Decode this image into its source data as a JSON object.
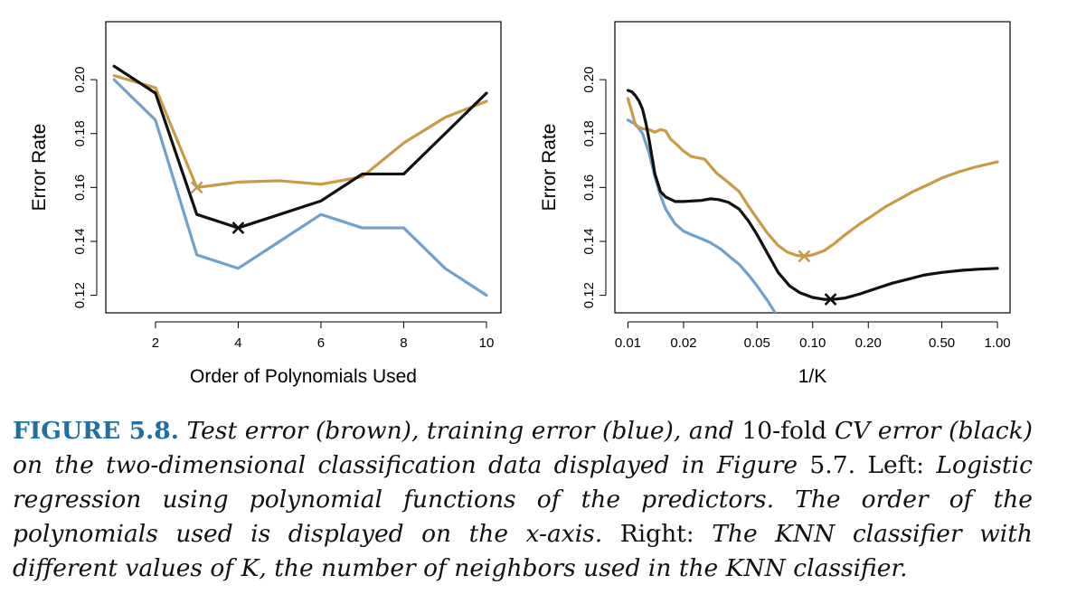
{
  "chart_data": [
    {
      "type": "line",
      "xlabel": "Order of Polynomials Used",
      "ylabel": "Error Rate",
      "xscale": "linear",
      "xlim": [
        0.8,
        10.35
      ],
      "ylim": [
        0.1135,
        0.2215
      ],
      "xticks": [
        2,
        4,
        6,
        8,
        10
      ],
      "xtick_labels": [
        "2",
        "4",
        "6",
        "8",
        "10"
      ],
      "yticks": [
        0.12,
        0.14,
        0.16,
        0.18,
        0.2
      ],
      "ytick_labels": [
        "0.12",
        "0.14",
        "0.16",
        "0.18",
        "0.20"
      ],
      "x": [
        1,
        2,
        3,
        4,
        5,
        6,
        7,
        8,
        9,
        10
      ],
      "series": [
        {
          "color": "#6fa1cb",
          "values": [
            0.2,
            0.185,
            0.135,
            0.13,
            0.14,
            0.15,
            0.145,
            0.145,
            0.13,
            0.12
          ]
        },
        {
          "color": "#c89b47",
          "values": [
            0.2015,
            0.197,
            0.16,
            0.162,
            0.1625,
            0.1612,
            0.164,
            0.1765,
            0.186,
            0.192
          ]
        },
        {
          "color": "#111111",
          "values": [
            0.205,
            0.195,
            0.15,
            0.145,
            0.15,
            0.155,
            0.165,
            0.165,
            0.18,
            0.195
          ]
        }
      ],
      "markers": [
        {
          "x": 3,
          "y": 0.16,
          "color": "#c89b47"
        },
        {
          "x": 4,
          "y": 0.145,
          "color": "#111111"
        }
      ]
    },
    {
      "type": "line",
      "xlabel": "1/K",
      "ylabel": "Error Rate",
      "xscale": "log",
      "xlim": [
        0.0085,
        1.17
      ],
      "ylim": [
        0.1135,
        0.2215
      ],
      "xticks": [
        0.01,
        0.02,
        0.05,
        0.1,
        0.2,
        0.5,
        1.0
      ],
      "xtick_labels": [
        "0.01",
        "0.02",
        "0.05",
        "0.10",
        "0.20",
        "0.50",
        "1.00"
      ],
      "yticks": [
        0.12,
        0.14,
        0.16,
        0.18,
        0.2
      ],
      "ytick_labels": [
        "0.12",
        "0.14",
        "0.16",
        "0.18",
        "0.20"
      ],
      "series": [
        {
          "color": "#6fa1cb",
          "x": [
            0.01,
            0.011,
            0.012,
            0.013,
            0.014,
            0.015,
            0.016,
            0.018,
            0.02,
            0.022,
            0.025,
            0.028,
            0.032,
            0.036,
            0.04,
            0.045,
            0.05,
            0.057,
            0.064,
            0.0715
          ],
          "values": [
            0.185,
            0.1835,
            0.18,
            0.173,
            0.164,
            0.157,
            0.152,
            0.1465,
            0.1438,
            0.1425,
            0.141,
            0.1395,
            0.137,
            0.134,
            0.1315,
            0.1275,
            0.1235,
            0.118,
            0.1125,
            0.1065
          ]
        },
        {
          "color": "#c89b47",
          "x": [
            0.01,
            0.0105,
            0.011,
            0.012,
            0.013,
            0.014,
            0.015,
            0.016,
            0.017,
            0.018,
            0.02,
            0.022,
            0.024,
            0.026,
            0.03,
            0.034,
            0.04,
            0.045,
            0.05,
            0.057,
            0.065,
            0.073,
            0.082,
            0.09,
            0.1,
            0.115,
            0.13,
            0.15,
            0.18,
            0.21,
            0.25,
            0.3,
            0.35,
            0.42,
            0.5,
            0.6,
            0.75,
            1.0
          ],
          "values": [
            0.193,
            0.188,
            0.183,
            0.1818,
            0.1815,
            0.1805,
            0.1815,
            0.181,
            0.178,
            0.1765,
            0.1735,
            0.1715,
            0.171,
            0.1705,
            0.1655,
            0.1625,
            0.1585,
            0.153,
            0.1485,
            0.143,
            0.1385,
            0.136,
            0.1348,
            0.1345,
            0.135,
            0.1365,
            0.139,
            0.1425,
            0.1465,
            0.1495,
            0.153,
            0.156,
            0.1585,
            0.161,
            0.1635,
            0.1655,
            0.1675,
            0.1695
          ]
        },
        {
          "color": "#111111",
          "x": [
            0.01,
            0.0105,
            0.011,
            0.0115,
            0.012,
            0.0125,
            0.013,
            0.014,
            0.015,
            0.016,
            0.018,
            0.02,
            0.025,
            0.028,
            0.031,
            0.035,
            0.04,
            0.045,
            0.05,
            0.057,
            0.065,
            0.075,
            0.085,
            0.1,
            0.115,
            0.13,
            0.15,
            0.18,
            0.22,
            0.27,
            0.33,
            0.4,
            0.5,
            0.65,
            0.8,
            1.0
          ],
          "values": [
            0.196,
            0.1955,
            0.194,
            0.192,
            0.189,
            0.184,
            0.178,
            0.165,
            0.1585,
            0.1565,
            0.1548,
            0.1548,
            0.1552,
            0.1558,
            0.1555,
            0.1545,
            0.152,
            0.1475,
            0.1425,
            0.1355,
            0.1285,
            0.1235,
            0.121,
            0.1192,
            0.1185,
            0.1185,
            0.119,
            0.1205,
            0.1225,
            0.1245,
            0.126,
            0.1275,
            0.1285,
            0.1293,
            0.1297,
            0.13
          ]
        }
      ],
      "markers": [
        {
          "x": 0.09,
          "y": 0.1345,
          "color": "#c89b47"
        },
        {
          "x": 0.125,
          "y": 0.1185,
          "color": "#111111"
        }
      ]
    }
  ],
  "caption": {
    "label": "FIGURE 5.8.",
    "seg1": "Test error (brown), training error (blue), and",
    "seg2": "10-fold",
    "seg3": "CV error (black) on the two-dimensional classification data displayed in Figure",
    "seg4": "5.7.",
    "seg5": "Left:",
    "seg6": "Logistic regression using polynomial functions of the predictors. The order of the polynomials used is displayed on the",
    "seg7": "x",
    "seg8": "-axis.",
    "seg9": "Right:",
    "seg10": "The KNN classifier with different values of",
    "seg11": "K",
    "seg12": ", the number of neighbors used in the KNN classifier."
  }
}
